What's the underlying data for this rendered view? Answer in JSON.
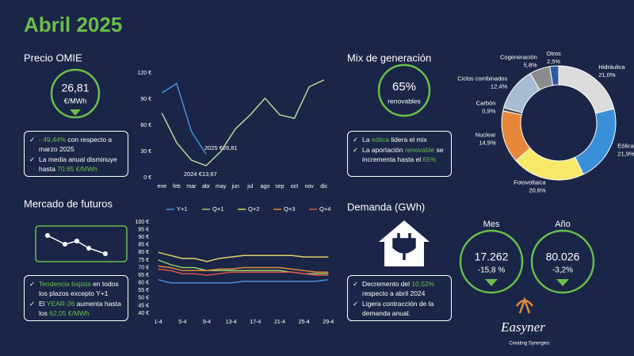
{
  "title": "Abril 2025",
  "omie": {
    "heading": "Precio OMIE",
    "kpi_value": "26,81",
    "kpi_unit": "€/MWh",
    "bullets": [
      {
        "hl": "- 49,44%",
        "post": " con respecto a marzo 2025"
      },
      {
        "pre": "La media anual disminuye hasta ",
        "hl": "70,65 €/MWh"
      }
    ]
  },
  "mix": {
    "heading": "Mix de generación",
    "kpi_value": "65%",
    "kpi_unit": "renovables",
    "bullets": [
      {
        "pre": "La ",
        "hl": "eólica",
        "post": " lidera el mix"
      },
      {
        "pre": "La aportación ",
        "hl": "renovable",
        "post": " se incrementa hasta el ",
        "hl2": "65%"
      }
    ]
  },
  "futures": {
    "heading": "Mercado de futuros",
    "bullets": [
      {
        "hl": "Tendencia bajista",
        "post": " en todos los plazos excepto Y+1"
      },
      {
        "pre": "El ",
        "hl": "YEAR-26",
        "post": " aumenta hasta los ",
        "hl2": "62,05 €/MWh"
      }
    ]
  },
  "demand": {
    "heading": "Demanda (GWh)",
    "month_label": "Mes",
    "month_value": "17.262",
    "month_change": "-15,8 %",
    "year_label": "Año",
    "year_value": "80.026",
    "year_change": "-3,2%",
    "bullets": [
      {
        "pre": "Decremento del ",
        "hl": "10,52%",
        "post": " respecto a abril 2024"
      },
      {
        "pre": "Ligera contracción de la demanda anual."
      }
    ]
  },
  "logo": {
    "name": "Easyner",
    "tagline": "Creating Synergies"
  },
  "chart_data": [
    {
      "type": "line",
      "categories": [
        "ene",
        "feb",
        "mar",
        "abr",
        "may",
        "jun",
        "jul",
        "ago",
        "sep",
        "oct",
        "nov",
        "dic"
      ],
      "series": [
        {
          "name": "2025",
          "color": "#4a90d9",
          "values": [
            97,
            108,
            53,
            26.81,
            null,
            null,
            null,
            null,
            null,
            null,
            null,
            null
          ]
        },
        {
          "name": "2024",
          "color": "#b5d99c",
          "values": [
            74,
            40,
            20,
            13.67,
            30,
            56,
            72,
            91,
            72,
            68,
            104,
            112
          ]
        }
      ],
      "ylim": [
        0,
        120
      ],
      "yticks": [
        {
          "value": 0,
          "label": "0 €"
        },
        {
          "value": 30,
          "label": "30 €"
        },
        {
          "value": 60,
          "label": "60 €"
        },
        {
          "value": 90,
          "label": "90 €"
        },
        {
          "value": 120,
          "label": "120 €"
        }
      ],
      "annotations": [
        "2025  €26,81",
        "2024  €13,67"
      ]
    },
    {
      "type": "pie",
      "donut": true,
      "categories": [
        "Hidráulica",
        "Eólica",
        "Fotovoltaica",
        "Nuclear",
        "Carbón",
        "Ciclos combinados",
        "Cogeneración",
        "Otros"
      ],
      "values": [
        21.0,
        21.9,
        20.6,
        14.9,
        0.9,
        12.4,
        5.8,
        2.5
      ],
      "value_labels": [
        "21,0%",
        "21,9%",
        "20,6%",
        "14,9%",
        "0,9%",
        "12,4%",
        "5,8%",
        "2,5%"
      ],
      "colors": [
        "#dcdcdc",
        "#3a8fd9",
        "#f6e96a",
        "#e8873a",
        "#4d4d4d",
        "#a8bcd4",
        "#8c8c8c",
        "#2d5aa8"
      ]
    },
    {
      "type": "line",
      "categories": [
        "1-4",
        null,
        "5-4",
        null,
        "9-4",
        null,
        "13-4",
        null,
        "17-4",
        null,
        "21-4",
        null,
        "25-4",
        null,
        "29-4"
      ],
      "series": [
        {
          "name": "Y+1",
          "color": "#4a90d9",
          "values": [
            62,
            60,
            60,
            60,
            60,
            60,
            60,
            61,
            61,
            61,
            61,
            61,
            61,
            61,
            62
          ]
        },
        {
          "name": "Q+1",
          "color": "#8fcf6a",
          "values": [
            75,
            72,
            70,
            70,
            68,
            68,
            68,
            68,
            68,
            68,
            68,
            67,
            66,
            66,
            66
          ]
        },
        {
          "name": "Q+2",
          "color": "#e0d36a",
          "values": [
            80,
            78,
            76,
            76,
            74,
            76,
            77,
            78,
            78,
            78,
            78,
            78,
            77,
            77,
            77
          ]
        },
        {
          "name": "Q+3",
          "color": "#e08a3a",
          "values": [
            71,
            70,
            68,
            68,
            68,
            69,
            69,
            70,
            70,
            70,
            70,
            69,
            68,
            67,
            67
          ]
        },
        {
          "name": "Q+4",
          "color": "#d9534f",
          "values": [
            69,
            68,
            66,
            66,
            65,
            66,
            67,
            67,
            67,
            67,
            67,
            67,
            66,
            65,
            65
          ]
        }
      ],
      "ylim": [
        40,
        100
      ],
      "yticks": [
        {
          "value": 40,
          "label": "40 €"
        },
        {
          "value": 45,
          "label": "45 €"
        },
        {
          "value": 50,
          "label": "50 €"
        },
        {
          "value": 55,
          "label": "55 €"
        },
        {
          "value": 60,
          "label": "60 €"
        },
        {
          "value": 65,
          "label": "65 €"
        },
        {
          "value": 70,
          "label": "70 €"
        },
        {
          "value": 75,
          "label": "75 €"
        },
        {
          "value": 80,
          "label": "80 €"
        },
        {
          "value": 85,
          "label": "85 €"
        },
        {
          "value": 90,
          "label": "90 €"
        },
        {
          "value": 95,
          "label": "95 €"
        },
        {
          "value": 100,
          "label": "100 €"
        }
      ]
    }
  ]
}
